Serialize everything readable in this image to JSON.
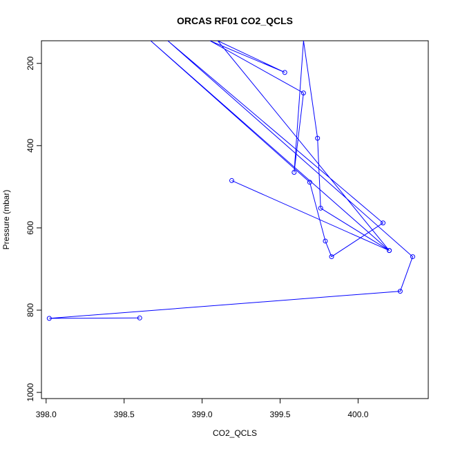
{
  "chart_data": {
    "type": "line",
    "title": "ORCAS RF01 CO2_QCLS",
    "xlabel": "CO2_QCLS",
    "ylabel": "Pressure (mbar)",
    "xlim": [
      397.97,
      400.45
    ],
    "ylim": [
      1015,
      145
    ],
    "y_inverted": true,
    "x_ticks": [
      398.0,
      398.5,
      399.0,
      399.5,
      400.0
    ],
    "x_tick_labels": [
      "398.0",
      "398.5",
      "399.0",
      "399.5",
      "400.0"
    ],
    "y_ticks": [
      200,
      400,
      600,
      800,
      1000
    ],
    "y_tick_labels": [
      "200",
      "400",
      "600",
      "800",
      "1000"
    ],
    "grid": false,
    "line_color": "#0000ff",
    "marker": "open-circle",
    "series": [
      {
        "name": "",
        "points": [
          {
            "x": 399.19,
            "y": 485
          },
          {
            "x": 400.2,
            "y": 655
          },
          {
            "x": 399.1,
            "y": 145
          },
          {
            "x": 399.53,
            "y": 222
          },
          {
            "x": 399.05,
            "y": 145
          },
          {
            "x": 399.65,
            "y": 272
          },
          {
            "x": 399.59,
            "y": 465
          },
          {
            "x": 399.65,
            "y": 145
          },
          {
            "x": 399.74,
            "y": 382
          },
          {
            "x": 399.76,
            "y": 552
          },
          {
            "x": 400.2,
            "y": 655
          },
          {
            "x": 398.67,
            "y": 145
          },
          {
            "x": 399.69,
            "y": 489
          },
          {
            "x": 399.79,
            "y": 632
          },
          {
            "x": 399.83,
            "y": 670
          },
          {
            "x": 400.16,
            "y": 588
          },
          {
            "x": 398.78,
            "y": 145
          },
          {
            "x": 400.35,
            "y": 670
          },
          {
            "x": 400.27,
            "y": 754
          },
          {
            "x": 398.02,
            "y": 820
          },
          {
            "x": 398.6,
            "y": 819
          }
        ]
      }
    ]
  }
}
